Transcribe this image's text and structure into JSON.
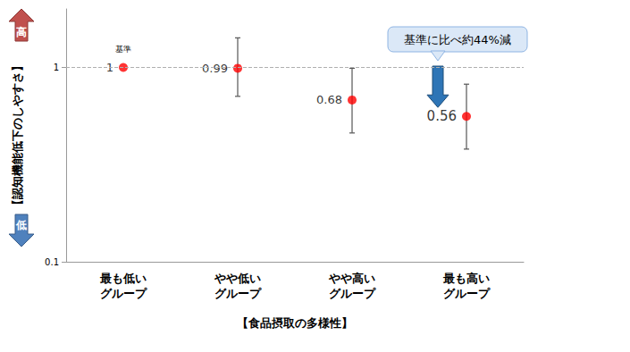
{
  "chart_data": {
    "type": "scatter",
    "categories": [
      "最も低い\nグループ",
      "やや低い\nグループ",
      "やや高い\nグループ",
      "最も高い\nグループ"
    ],
    "values": [
      1,
      0.99,
      0.68,
      0.56
    ],
    "error_low": [
      null,
      0.71,
      0.46,
      0.38
    ],
    "error_high": [
      null,
      1.42,
      0.99,
      0.82
    ],
    "color": "#ff0000",
    "data_labels": true,
    "log": "y",
    "ylim": [
      0.1,
      2
    ],
    "yticks": [
      0.1,
      1
    ],
    "grid": false,
    "reference_line": 1,
    "y_label": "【認知機能低下のしやすさ】",
    "x_label": "【食品摂取の多様性】",
    "axis_markers": {
      "high": "高",
      "low": "低"
    },
    "annotations": [
      {
        "text": "基準",
        "category": "最も低い\nグループ"
      },
      {
        "text": "基準に比べ約44%減",
        "category": "最も高い\nグループ"
      }
    ]
  }
}
